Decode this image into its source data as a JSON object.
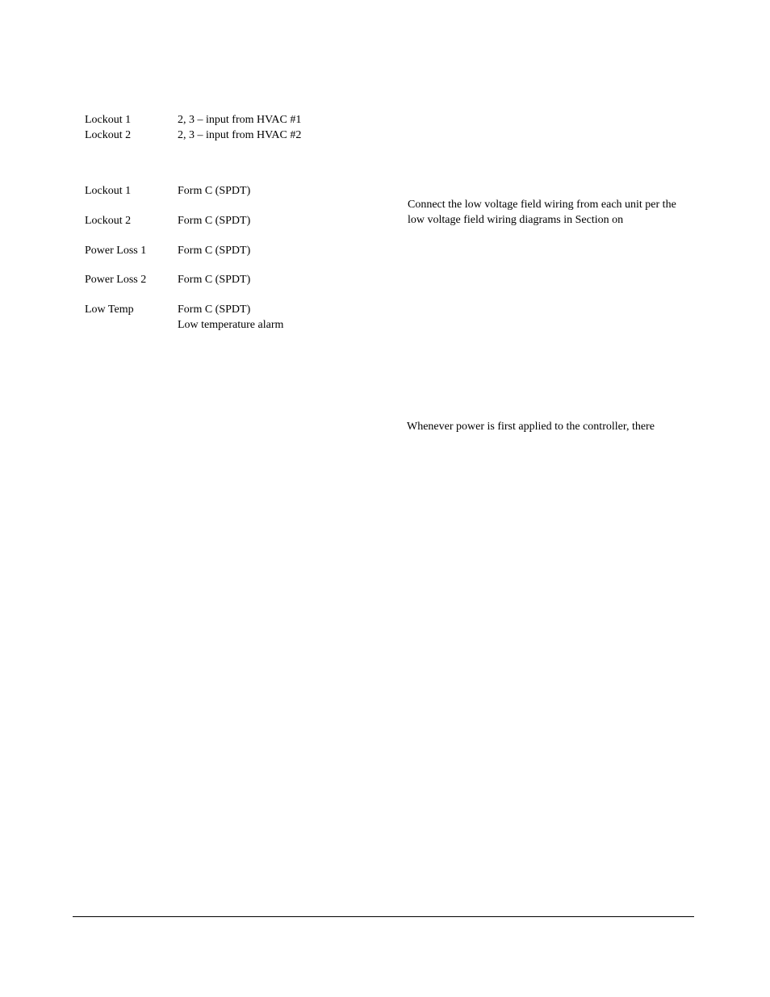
{
  "lockouts": [
    {
      "label": "Lockout 1",
      "val": "2, 3 – input from HVAC #1"
    },
    {
      "label": "Lockout 2",
      "val": "2, 3 – input from HVAC #2"
    }
  ],
  "io": [
    {
      "label": "Lockout 1",
      "val": "Form C (SPDT)"
    },
    {
      "label": "Lockout 2",
      "val": "Form C (SPDT)"
    },
    {
      "label": "Power Loss 1",
      "val": "Form C (SPDT)"
    },
    {
      "label": "Power Loss 2",
      "val": "Form C (SPDT)"
    },
    {
      "label": "Low Temp",
      "val": "Form C (SPDT)",
      "sub": "Low temperature alarm"
    }
  ],
  "right_para1": "Connect the low voltage field wiring from each unit per the low voltage field wiring diagrams in Section on",
  "right_para2": "Whenever power is first applied to the controller, there"
}
